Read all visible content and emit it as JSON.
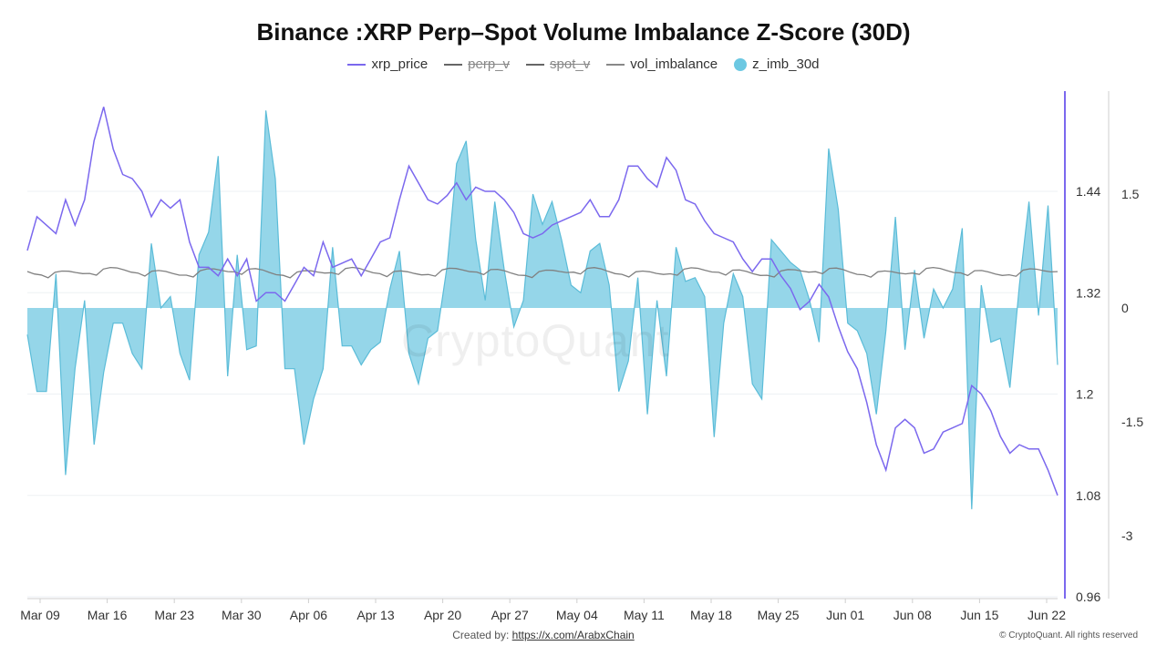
{
  "chart_data": {
    "type": "line",
    "title": "Binance :XRP Perp–Spot Volume Imbalance Z-Score (30D)",
    "legend": [
      {
        "name": "xrp_price",
        "color": "#7b68ee",
        "style": "line",
        "visible": true
      },
      {
        "name": "perp_v",
        "color": "#666666",
        "style": "line",
        "visible": false
      },
      {
        "name": "spot_v",
        "color": "#666666",
        "style": "line",
        "visible": false
      },
      {
        "name": "vol_imbalance",
        "color": "#888888",
        "style": "line",
        "visible": true
      },
      {
        "name": "z_imb_30d",
        "color": "#6cc8e2",
        "style": "area",
        "visible": true
      }
    ],
    "legend_position": "top-center",
    "x_tick_labels": [
      "Mar 09",
      "Mar 16",
      "Mar 23",
      "Mar 30",
      "Apr 06",
      "Apr 13",
      "Apr 20",
      "Apr 27",
      "May 04",
      "May 11",
      "May 18",
      "May 25",
      "Jun 01",
      "Jun 08",
      "Jun 15",
      "Jun 22"
    ],
    "x_start": "Mar 09",
    "y_left": {
      "label": "",
      "range": [
        0.96,
        1.44
      ],
      "ticks": [
        "1.44",
        "1.32",
        "1.2",
        "1.08",
        "0.96"
      ]
    },
    "y_right": {
      "label": "",
      "range": [
        -3,
        1.5
      ],
      "ticks": [
        "1.5",
        "0",
        "-1.5",
        "-3"
      ]
    },
    "grid": "horizontal",
    "series": [
      {
        "name": "xrp_price",
        "axis": "left",
        "values": [
          1.37,
          1.41,
          1.4,
          1.39,
          1.43,
          1.4,
          1.43,
          1.5,
          1.54,
          1.49,
          1.46,
          1.455,
          1.44,
          1.41,
          1.43,
          1.42,
          1.43,
          1.38,
          1.35,
          1.35,
          1.34,
          1.36,
          1.34,
          1.36,
          1.31,
          1.32,
          1.32,
          1.31,
          1.33,
          1.35,
          1.34,
          1.38,
          1.35,
          1.355,
          1.36,
          1.34,
          1.36,
          1.38,
          1.385,
          1.43,
          1.47,
          1.45,
          1.43,
          1.425,
          1.435,
          1.45,
          1.43,
          1.445,
          1.44,
          1.44,
          1.43,
          1.415,
          1.39,
          1.385,
          1.39,
          1.4,
          1.405,
          1.41,
          1.415,
          1.43,
          1.41,
          1.41,
          1.43,
          1.47,
          1.47,
          1.455,
          1.445,
          1.48,
          1.465,
          1.43,
          1.425,
          1.405,
          1.39,
          1.385,
          1.38,
          1.36,
          1.345,
          1.36,
          1.36,
          1.34,
          1.325,
          1.3,
          1.31,
          1.33,
          1.315,
          1.28,
          1.25,
          1.23,
          1.19,
          1.14,
          1.11,
          1.16,
          1.17,
          1.16,
          1.13,
          1.135,
          1.155,
          1.16,
          1.165,
          1.21,
          1.2,
          1.18,
          1.15,
          1.13,
          1.14,
          1.135,
          1.135,
          1.11,
          1.08
        ]
      },
      {
        "name": "vol_imbalance",
        "axis": "right",
        "values": []
      },
      {
        "name": "z_imb_30d",
        "axis": "right",
        "values": [
          -0.35,
          -1.1,
          -1.1,
          0.45,
          -2.2,
          -0.8,
          0.1,
          -1.8,
          -0.85,
          -0.2,
          -0.2,
          -0.6,
          -0.8,
          0.85,
          0,
          0.15,
          -0.6,
          -0.95,
          0.7,
          1.0,
          2.0,
          -0.9,
          0.7,
          -0.55,
          -0.5,
          2.6,
          1.7,
          -0.8,
          -0.8,
          -1.8,
          -1.2,
          -0.8,
          0.8,
          -0.5,
          -0.5,
          -0.75,
          -0.55,
          -0.45,
          0.25,
          0.75,
          -0.6,
          -1.0,
          -0.4,
          -0.3,
          0.55,
          1.9,
          2.2,
          0.9,
          0.1,
          1.4,
          0.5,
          -0.25,
          0.1,
          1.5,
          1.1,
          1.4,
          0.9,
          0.3,
          0.2,
          0.75,
          0.85,
          0.3,
          -1.1,
          -0.7,
          0.4,
          -1.4,
          0.1,
          -0.9,
          0.8,
          0.35,
          0.4,
          0.15,
          -1.7,
          -0.2,
          0.45,
          0.15,
          -1.0,
          -1.2,
          0.9,
          0.75,
          0.6,
          0.5,
          0.1,
          -0.45,
          2.1,
          1.3,
          -0.2,
          -0.3,
          -0.6,
          -1.4,
          -0.3,
          1.2,
          -0.55,
          0.5,
          -0.4,
          0.25,
          0.0,
          0.25,
          1.05,
          -2.65,
          0.3,
          -0.45,
          -0.4,
          -1.05,
          0.3,
          1.4,
          -0.1,
          1.35,
          -0.75
        ]
      }
    ]
  },
  "watermark": "CryptoQuant",
  "footer": {
    "created_by_label": "Created by:",
    "link_text": "https://x.com/ArabxChain",
    "copyright": "© CryptoQuant. All rights reserved"
  }
}
